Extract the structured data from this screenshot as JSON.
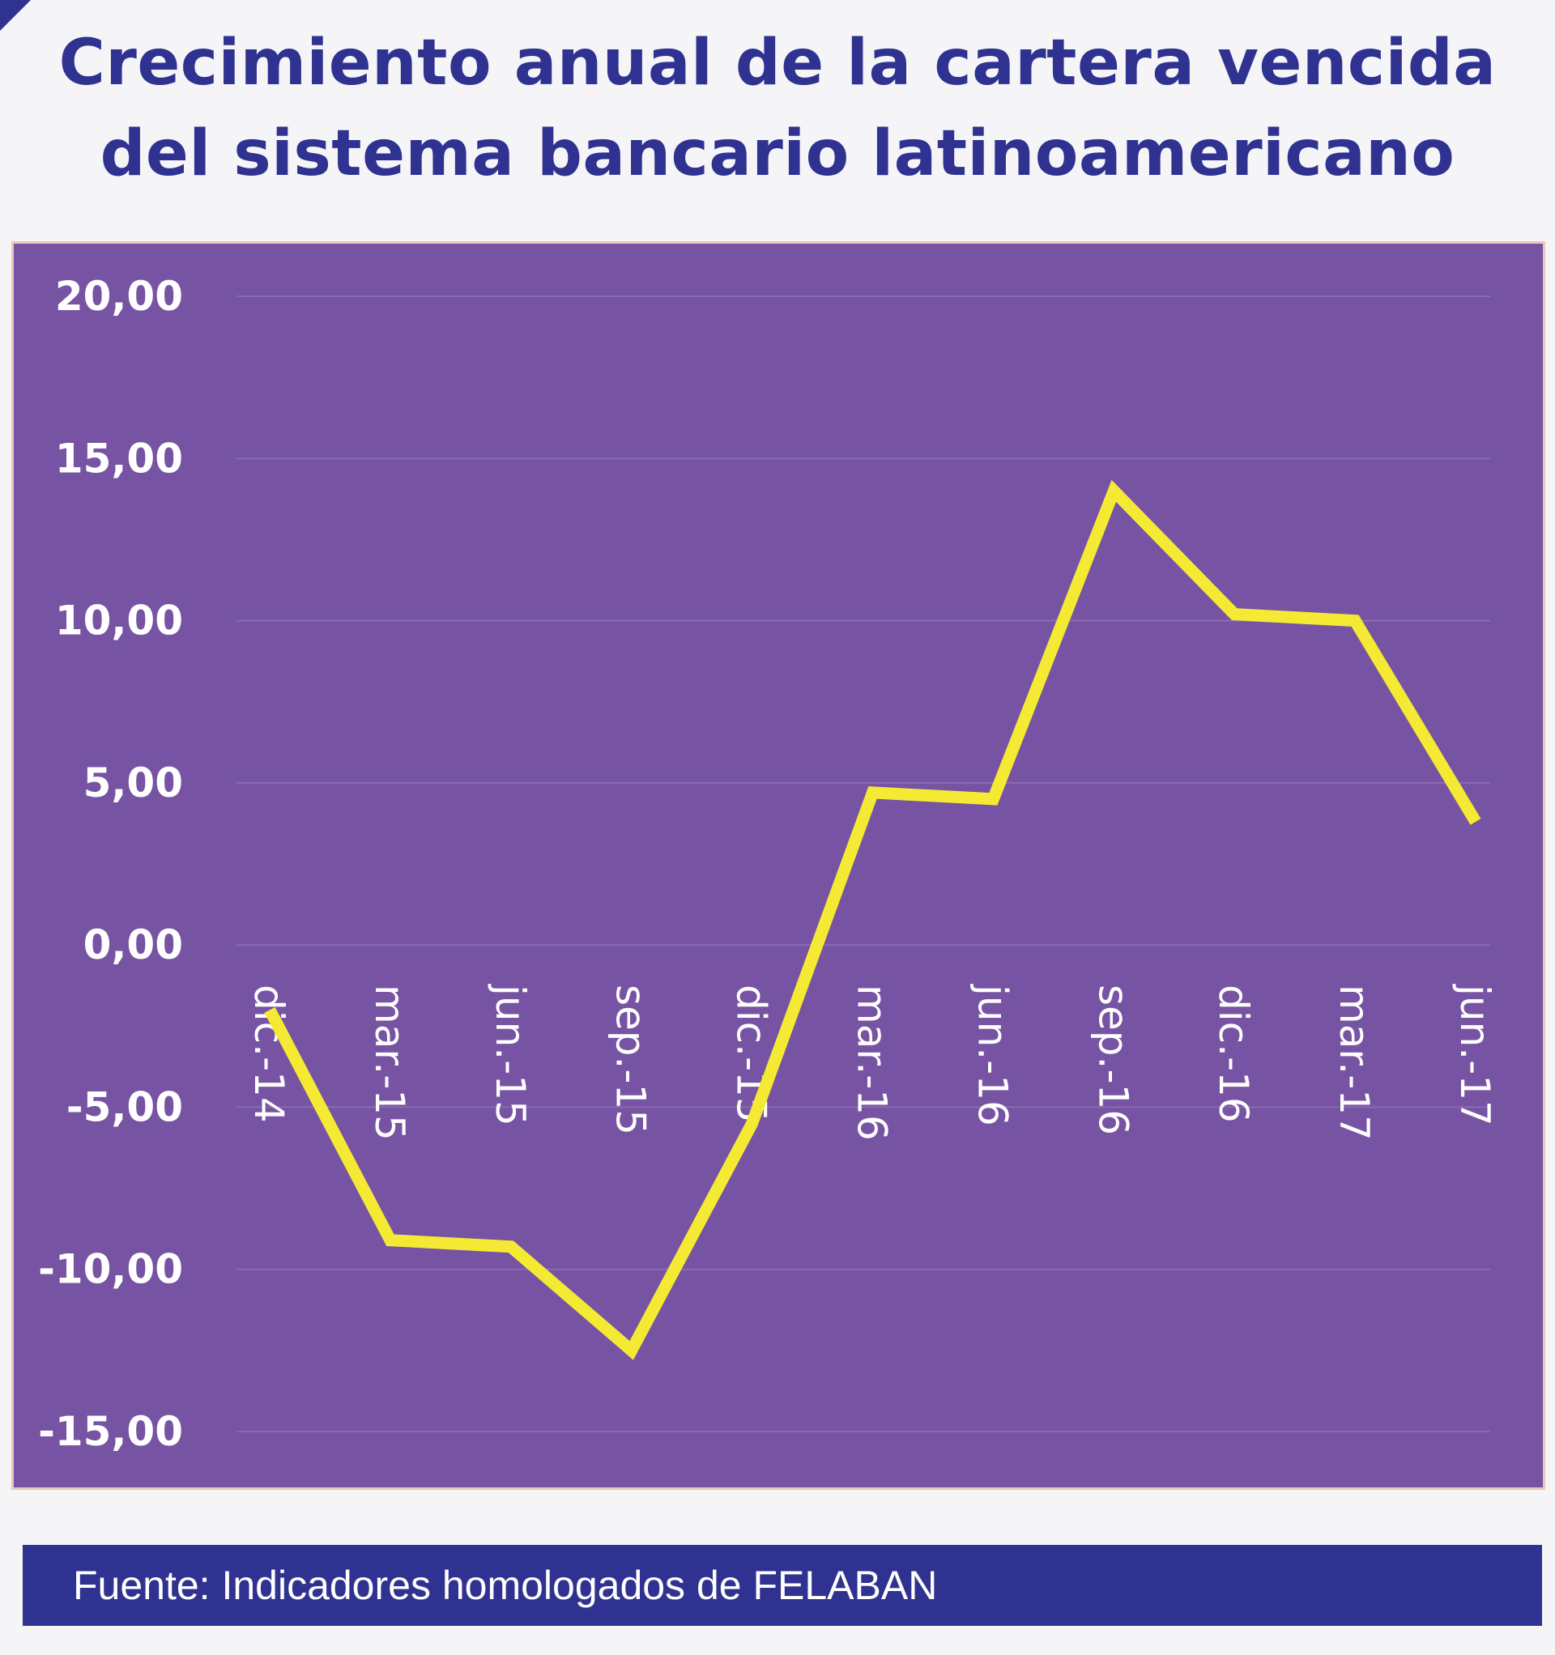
{
  "chart_data": {
    "type": "line",
    "title": "Crecimiento anual de la cartera vencida del sistema bancario latinoamericano",
    "title_lines": [
      "Crecimiento anual de la cartera vencida",
      "del sistema bancario latinoamericano"
    ],
    "categories": [
      "dic.-14",
      "mar.-15",
      "jun.-15",
      "sep.-15",
      "dic.-15",
      "mar.-16",
      "jun.-16",
      "sep.-16",
      "dic.-16",
      "mar.-17",
      "jun.-17"
    ],
    "series": [
      {
        "values": [
          -2.0,
          -9.1,
          -9.3,
          -12.5,
          -5.5,
          4.7,
          4.5,
          14.0,
          10.2,
          10.0,
          3.8
        ],
        "color": "#f4ea33"
      }
    ],
    "xlabel": "",
    "ylabel": "",
    "ylim": [
      -15,
      20
    ],
    "yticks": [
      20,
      15,
      10,
      5,
      0,
      -5,
      -10,
      -15
    ],
    "ytick_labels": [
      "20,00",
      "15,00",
      "10,00",
      "5,00",
      "0,00",
      "-5,00",
      "-10,00",
      "-15,00"
    ],
    "grid": true,
    "legend": "none",
    "plot_background": "#7753a3",
    "line_color": "#f4ea33"
  },
  "source": {
    "text": "Fuente: Indicadores homologados de FELABAN"
  },
  "colors": {
    "title": "#2f3290",
    "source_bar": "#2f3290",
    "tick_labels": "#ffffff"
  }
}
